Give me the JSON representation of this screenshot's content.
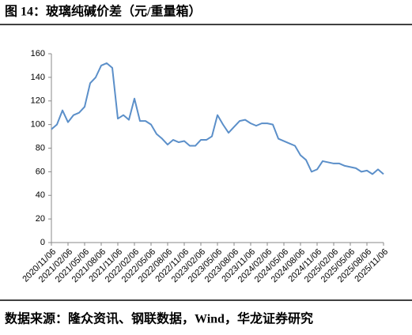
{
  "chart_data": {
    "type": "line",
    "title": "图 14：玻璃纯碱价差（元/重量箱）",
    "source": "数据来源：隆众资讯、钢联数据，Wind，华龙证券研究",
    "categories": [
      "2020/11/06",
      null,
      null,
      "2021/02/06",
      null,
      null,
      "2021/05/06",
      null,
      null,
      "2021/08/06",
      null,
      null,
      "2021/11/06",
      null,
      null,
      "2022/02/06",
      null,
      null,
      "2022/05/06",
      null,
      null,
      "2022/08/06",
      null,
      null,
      "2022/11/06",
      null,
      null,
      "2023/02/06",
      null,
      null,
      "2023/05/06",
      null,
      null,
      "2023/08/06",
      null,
      null,
      "2023/11/06",
      null,
      null,
      "2024/02/06",
      null,
      null,
      "2024/05/06",
      null,
      null,
      "2024/08/06",
      null,
      null,
      "2024/11/06",
      null,
      null,
      "2025/02/06",
      null,
      null,
      "2025/05/06",
      null,
      null,
      "2025/08/06",
      null,
      null,
      "2025/11/06"
    ],
    "values": [
      96,
      100,
      112,
      102,
      108,
      110,
      115,
      135,
      140,
      150,
      152,
      148,
      105,
      108,
      104,
      122,
      103,
      103,
      100,
      92,
      88,
      83,
      87,
      85,
      86,
      82,
      82,
      87,
      87,
      90,
      108,
      100,
      93,
      98,
      103,
      104,
      101,
      99,
      101,
      101,
      100,
      88,
      86,
      84,
      82,
      74,
      70,
      60,
      62,
      69,
      68,
      67,
      67,
      65,
      64,
      63,
      60,
      61,
      58,
      62,
      58
    ],
    "color": "#5b8fc9",
    "ylim": [
      0,
      160
    ],
    "yticks": [
      0,
      20,
      40,
      60,
      80,
      100,
      120,
      140,
      160
    ],
    "grid": false
  }
}
